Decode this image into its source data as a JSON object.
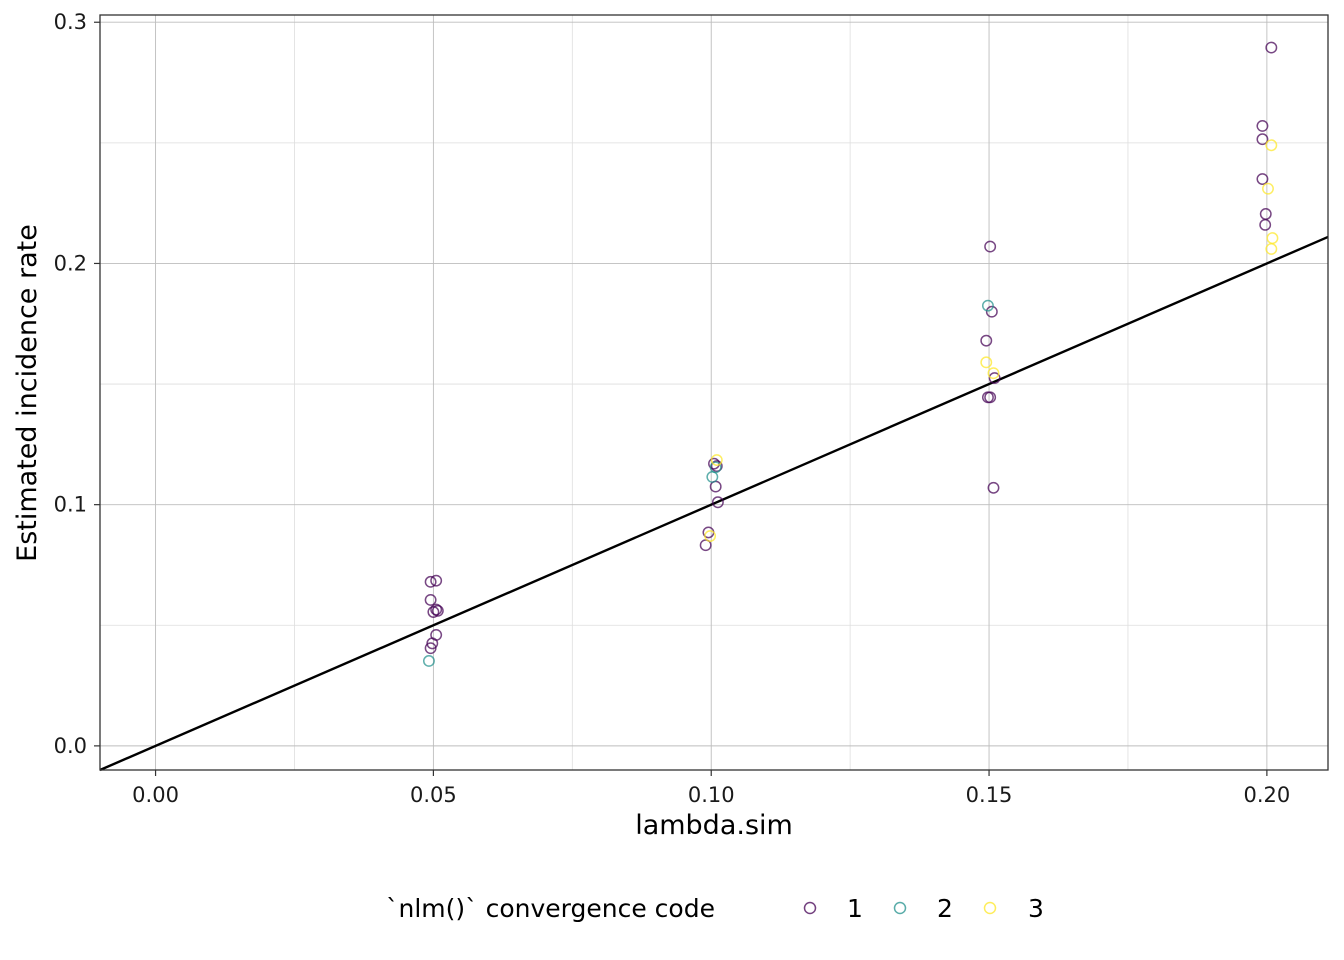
{
  "chart_data": {
    "type": "scatter",
    "xlabel": "lambda.sim",
    "ylabel": "Estimated incidence rate",
    "xlim": [
      -0.01,
      0.211
    ],
    "ylim": [
      -0.01,
      0.303
    ],
    "x_ticks": [
      0.0,
      0.05,
      0.1,
      0.15,
      0.2
    ],
    "x_tick_labels": [
      "0.00",
      "0.05",
      "0.10",
      "0.15",
      "0.20"
    ],
    "y_ticks": [
      0.0,
      0.1,
      0.2,
      0.3
    ],
    "y_tick_labels": [
      "0.0",
      "0.1",
      "0.2",
      "0.3"
    ],
    "grid": true,
    "reference_line": {
      "intercept": 0,
      "slope": 1
    },
    "legend": {
      "title": "`nlm()` convergence code",
      "position": "bottom",
      "entries": [
        {
          "label": "1",
          "color": "#440154"
        },
        {
          "label": "2",
          "color": "#21908C"
        },
        {
          "label": "3",
          "color": "#FDE725"
        }
      ]
    },
    "series": [
      {
        "name": "1",
        "color": "#440154",
        "points": [
          [
            0.0495,
            0.068
          ],
          [
            0.0505,
            0.0685
          ],
          [
            0.0495,
            0.0605
          ],
          [
            0.0505,
            0.0565
          ],
          [
            0.05,
            0.0555
          ],
          [
            0.0508,
            0.056
          ],
          [
            0.0505,
            0.046
          ],
          [
            0.0498,
            0.0425
          ],
          [
            0.0495,
            0.0405
          ],
          [
            0.1005,
            0.117
          ],
          [
            0.101,
            0.116
          ],
          [
            0.1008,
            0.1075
          ],
          [
            0.1012,
            0.101
          ],
          [
            0.0995,
            0.0885
          ],
          [
            0.099,
            0.0832
          ],
          [
            0.1502,
            0.207
          ],
          [
            0.1505,
            0.18
          ],
          [
            0.1495,
            0.168
          ],
          [
            0.151,
            0.1525
          ],
          [
            0.1498,
            0.1445
          ],
          [
            0.1502,
            0.1445
          ],
          [
            0.1508,
            0.107
          ],
          [
            0.2008,
            0.2895
          ],
          [
            0.1992,
            0.257
          ],
          [
            0.1992,
            0.2515
          ],
          [
            0.1992,
            0.235
          ],
          [
            0.1998,
            0.2205
          ],
          [
            0.1997,
            0.216
          ]
        ]
      },
      {
        "name": "2",
        "color": "#21908C",
        "points": [
          [
            0.0492,
            0.0352
          ],
          [
            0.1002,
            0.1115
          ],
          [
            0.1008,
            0.1155
          ],
          [
            0.1498,
            0.1825
          ]
        ]
      },
      {
        "name": "3",
        "color": "#FDE725",
        "points": [
          [
            0.101,
            0.1185
          ],
          [
            0.0998,
            0.087
          ],
          [
            0.1495,
            0.159
          ],
          [
            0.1508,
            0.1545
          ],
          [
            0.2008,
            0.249
          ],
          [
            0.2002,
            0.231
          ],
          [
            0.201,
            0.2105
          ],
          [
            0.2008,
            0.206
          ]
        ]
      }
    ]
  }
}
